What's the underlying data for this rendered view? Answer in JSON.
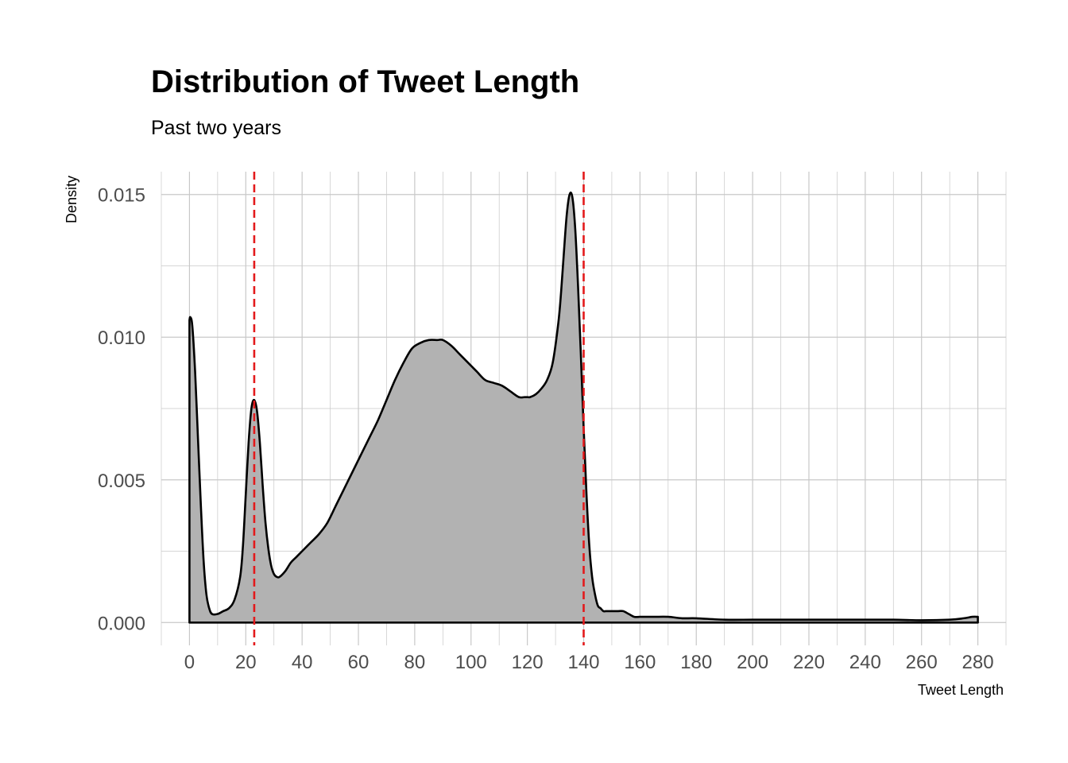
{
  "chart_data": {
    "type": "area",
    "title": "Distribution of Tweet Length",
    "subtitle": "Past two years",
    "xlabel": "Tweet Length",
    "ylabel": "Density",
    "xlim": [
      -10,
      290
    ],
    "ylim": [
      -0.0008,
      0.0158
    ],
    "x_ticks": [
      0,
      20,
      40,
      60,
      80,
      100,
      120,
      140,
      160,
      180,
      200,
      220,
      240,
      260,
      280
    ],
    "x_tick_labels": [
      "0",
      "20",
      "40",
      "60",
      "80",
      "100",
      "120",
      "140",
      "160",
      "180",
      "200",
      "220",
      "240",
      "260",
      "280"
    ],
    "y_ticks": [
      0.0,
      0.005,
      0.01,
      0.015
    ],
    "y_tick_labels": [
      "0.000",
      "0.005",
      "0.010",
      "0.015"
    ],
    "grid": true,
    "series": [
      {
        "x": [
          0,
          0.3,
          1,
          2,
          3,
          4,
          5,
          6,
          7,
          8,
          10,
          12,
          14,
          16,
          18,
          19,
          20,
          21,
          22,
          23,
          24,
          25,
          26,
          27,
          28,
          29,
          30,
          31,
          32,
          34,
          36,
          38,
          40,
          43,
          46,
          49,
          52,
          55,
          58,
          61,
          64,
          67,
          70,
          73,
          76,
          79,
          82,
          85,
          88,
          90,
          93,
          96,
          99,
          102,
          105,
          108,
          111,
          114,
          117,
          119,
          120,
          121,
          123,
          125,
          127,
          129,
          131,
          132,
          133,
          134,
          135,
          136,
          137,
          138,
          139,
          140,
          141,
          142,
          143,
          144,
          145,
          146,
          147,
          148,
          150,
          152,
          154,
          156,
          158,
          160,
          165,
          170,
          175,
          180,
          190,
          200,
          210,
          220,
          230,
          240,
          250,
          260,
          270,
          275,
          278,
          280
        ],
        "y": [
          0.0106,
          0.0107,
          0.0104,
          0.0088,
          0.0065,
          0.0042,
          0.0022,
          0.001,
          0.0005,
          0.0003,
          0.0003,
          0.0004,
          0.0005,
          0.0008,
          0.0016,
          0.0027,
          0.0045,
          0.0063,
          0.0075,
          0.0078,
          0.0074,
          0.0063,
          0.0048,
          0.0035,
          0.0026,
          0.002,
          0.0017,
          0.0016,
          0.0016,
          0.0018,
          0.0021,
          0.0023,
          0.0025,
          0.0028,
          0.0031,
          0.0035,
          0.0041,
          0.0047,
          0.0053,
          0.0059,
          0.0065,
          0.0071,
          0.0078,
          0.0085,
          0.0091,
          0.0096,
          0.0098,
          0.0099,
          0.0099,
          0.0099,
          0.0097,
          0.0094,
          0.0091,
          0.0088,
          0.0085,
          0.0084,
          0.0083,
          0.0081,
          0.0079,
          0.0079,
          0.0079,
          0.0079,
          0.008,
          0.0082,
          0.0085,
          0.0091,
          0.0105,
          0.0116,
          0.013,
          0.0143,
          0.015,
          0.0149,
          0.0138,
          0.0118,
          0.0094,
          0.0068,
          0.0045,
          0.0027,
          0.0016,
          0.001,
          0.0006,
          0.0005,
          0.0004,
          0.0004,
          0.0004,
          0.0004,
          0.0004,
          0.0003,
          0.0002,
          0.0002,
          0.0002,
          0.0002,
          0.00015,
          0.00015,
          0.0001,
          0.0001,
          0.0001,
          0.0001,
          0.0001,
          0.0001,
          0.0001,
          8e-05,
          0.0001,
          0.00015,
          0.0002,
          0.0002
        ]
      }
    ],
    "vlines": [
      23,
      140
    ],
    "colors": {
      "fill": "#b2b2b2",
      "line": "#000000",
      "vline": "#e31a1c",
      "grid": "#c8c8c8"
    }
  }
}
